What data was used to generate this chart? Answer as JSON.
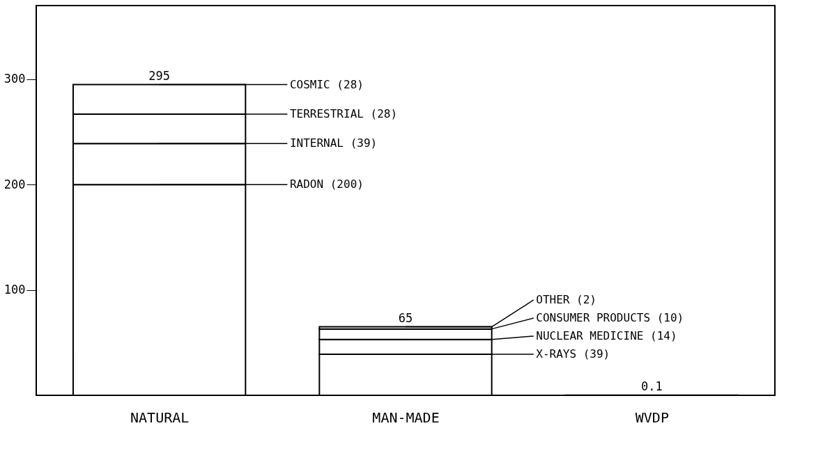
{
  "chart_data": {
    "type": "bar",
    "stacked": true,
    "categories": [
      "NATURAL",
      "MAN-MADE",
      "WVDP"
    ],
    "series": [
      {
        "color": "#ffffff",
        "values": [
          200,
          39,
          0.1
        ]
      },
      {
        "color": "#ffffff",
        "values": [
          39,
          14,
          null
        ]
      },
      {
        "color": "#ffffff",
        "values": [
          28,
          10,
          null
        ]
      },
      {
        "color": "#ffffff",
        "values": [
          28,
          2,
          null
        ]
      }
    ],
    "totals": [
      "295",
      "65",
      "0.1"
    ],
    "ylim": [
      0,
      370
    ],
    "yticks": [
      100,
      200,
      300
    ],
    "grid": false,
    "annotations": [
      {
        "text": "COSMIC (28)",
        "x": "NATURAL",
        "y": 295
      },
      {
        "text": "TERRESTRIAL (28)",
        "x": "NATURAL",
        "y": 267
      },
      {
        "text": "INTERNAL (39)",
        "x": "NATURAL",
        "y": 239
      },
      {
        "text": "RADON (200)",
        "x": "NATURAL",
        "y": 200
      },
      {
        "text": "OTHER (2)",
        "x": "MAN-MADE",
        "y": 65
      },
      {
        "text": "CONSUMER PRODUCTS (10)",
        "x": "MAN-MADE",
        "y": 63
      },
      {
        "text": "NUCLEAR MEDICINE (14)",
        "x": "MAN-MADE",
        "y": 53
      },
      {
        "text": "X-RAYS (39)",
        "x": "MAN-MADE",
        "y": 39
      }
    ]
  }
}
